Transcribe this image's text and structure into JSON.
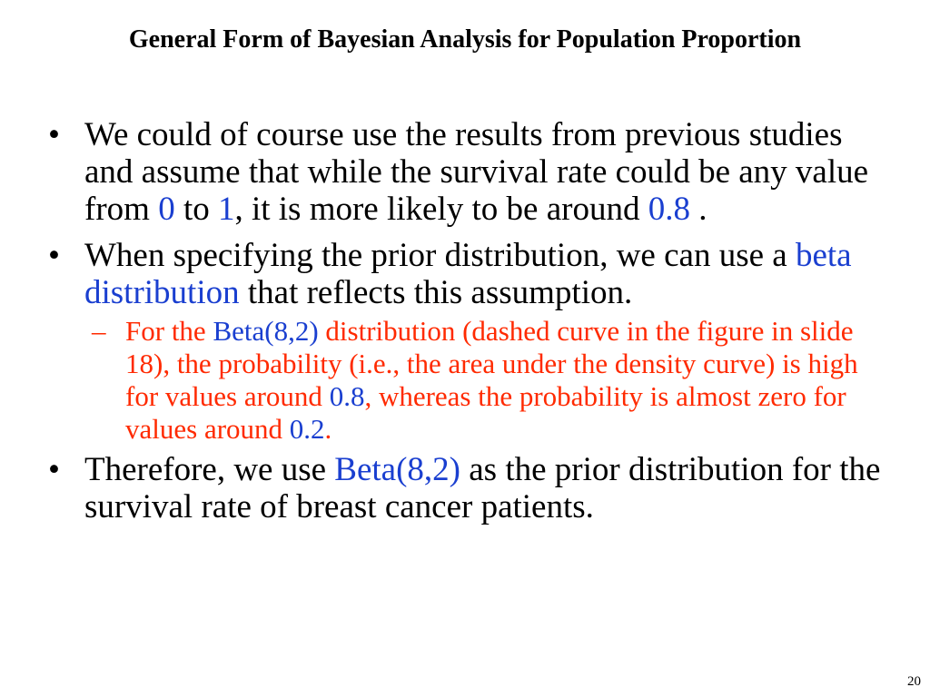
{
  "slide": {
    "title": "General Form of Bayesian Analysis for Population Proportion",
    "page_number": "20",
    "colors": {
      "text": "#000000",
      "highlight_blue": "#1a3fd0",
      "sub_bullet_red": "#ff2a00"
    }
  },
  "bullets": {
    "b1": {
      "marker": "•",
      "t1": "We could of course use the results from previous studies and assume that while the survival rate could be any value from ",
      "h1": "0",
      "t2": " to ",
      "h2": "1",
      "t3": ", it is more likely to be around ",
      "h3": "0.8",
      "t4": " ."
    },
    "b2": {
      "marker": "•",
      "t1": "When specifying the prior distribution, we can use a ",
      "h1": "beta distribution",
      "t2": " that reflects this assumption."
    },
    "b2_sub": {
      "marker": "–",
      "t1": "For the ",
      "h1": "Beta(8,2)",
      "t2": " distribution (dashed curve in the figure in slide 18), the probability (i.e., the area under the density curve) is high for values around ",
      "h2": "0.8",
      "t3": ", whereas the probability is almost zero for values around ",
      "h3": "0.2",
      "t4": "."
    },
    "b3": {
      "marker": "•",
      "t1": "Therefore, we use ",
      "h1": "Beta(8,2)",
      "t2": " as the prior distribution for the survival rate of breast cancer patients."
    }
  }
}
